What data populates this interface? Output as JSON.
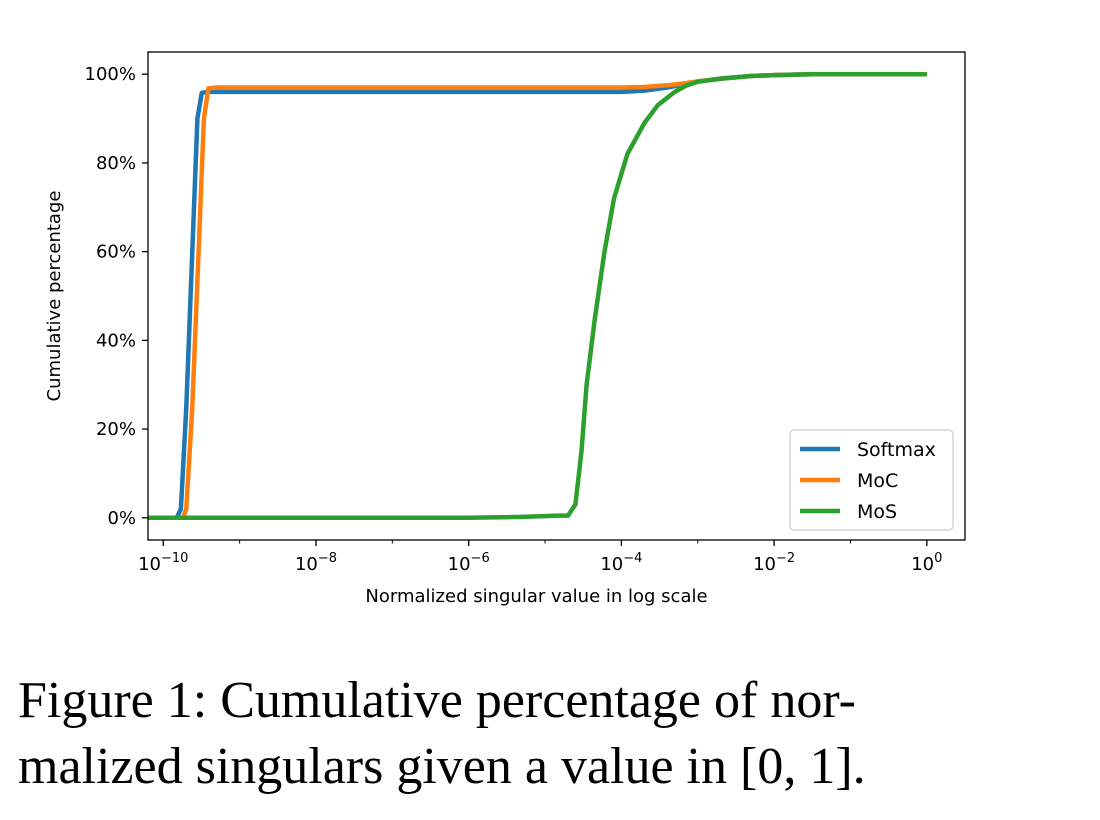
{
  "chart_data": {
    "type": "line",
    "title": "",
    "xlabel": "Normalized singular value in log scale",
    "ylabel": "Cumulative percentage",
    "x_scale": "log",
    "xlim": [
      1e-10,
      1
    ],
    "ylim": [
      0,
      100
    ],
    "x_ticks": [
      {
        "base": "10",
        "exp": "−10"
      },
      {
        "base": "10",
        "exp": "−8"
      },
      {
        "base": "10",
        "exp": "−6"
      },
      {
        "base": "10",
        "exp": "−4"
      },
      {
        "base": "10",
        "exp": "−2"
      },
      {
        "base": "10",
        "exp": "0"
      }
    ],
    "y_ticks": [
      "0%",
      "20%",
      "40%",
      "60%",
      "80%",
      "100%"
    ],
    "grid": false,
    "legend": "bottom-right",
    "series": [
      {
        "name": "Softmax",
        "color": "#1f77b4",
        "points": [
          [
            6.3e-11,
            0
          ],
          [
            1.5e-10,
            0
          ],
          [
            1.7e-10,
            2
          ],
          [
            2e-10,
            25
          ],
          [
            2.4e-10,
            60
          ],
          [
            2.8e-10,
            90
          ],
          [
            3.2e-10,
            95.8
          ],
          [
            4e-10,
            96
          ],
          [
            1e-09,
            96
          ],
          [
            1e-08,
            96
          ],
          [
            1e-07,
            96
          ],
          [
            1e-06,
            96
          ],
          [
            1e-05,
            96
          ],
          [
            5e-05,
            96
          ],
          [
            0.0001,
            96
          ],
          [
            0.0002,
            96.3
          ],
          [
            0.0004,
            97
          ],
          [
            0.0007,
            97.8
          ],
          [
            0.001,
            98.3
          ],
          [
            0.002,
            99
          ],
          [
            0.005,
            99.6
          ],
          [
            0.01,
            99.8
          ],
          [
            0.03,
            100
          ],
          [
            1,
            100
          ]
        ]
      },
      {
        "name": "MoC",
        "color": "#ff7f0e",
        "points": [
          [
            6.3e-11,
            0
          ],
          [
            1.8e-10,
            0
          ],
          [
            2e-10,
            2
          ],
          [
            2.4e-10,
            25
          ],
          [
            2.9e-10,
            60
          ],
          [
            3.4e-10,
            90
          ],
          [
            3.9e-10,
            96.8
          ],
          [
            5e-10,
            97
          ],
          [
            1e-09,
            97
          ],
          [
            1e-08,
            97
          ],
          [
            1e-07,
            97
          ],
          [
            1e-06,
            97
          ],
          [
            1e-05,
            97
          ],
          [
            0.0001,
            97
          ],
          [
            0.0002,
            97.1
          ],
          [
            0.0004,
            97.5
          ],
          [
            0.0007,
            98
          ],
          [
            0.001,
            98.4
          ],
          [
            0.002,
            99
          ],
          [
            0.005,
            99.6
          ],
          [
            0.01,
            99.8
          ],
          [
            0.03,
            100
          ],
          [
            1,
            100
          ]
        ]
      },
      {
        "name": "MoS",
        "color": "#2ca02c",
        "points": [
          [
            6.3e-11,
            0
          ],
          [
            1e-09,
            0
          ],
          [
            1e-07,
            0
          ],
          [
            1e-06,
            0
          ],
          [
            5e-06,
            0.2
          ],
          [
            1.5e-05,
            0.5
          ],
          [
            2e-05,
            0.5
          ],
          [
            2.5e-05,
            3
          ],
          [
            3e-05,
            15
          ],
          [
            3.5e-05,
            30
          ],
          [
            4.5e-05,
            45
          ],
          [
            6e-05,
            60
          ],
          [
            8e-05,
            72
          ],
          [
            0.00012,
            82
          ],
          [
            0.0002,
            89
          ],
          [
            0.0003,
            93
          ],
          [
            0.0005,
            96
          ],
          [
            0.0007,
            97.4
          ],
          [
            0.001,
            98.3
          ],
          [
            0.002,
            99
          ],
          [
            0.005,
            99.6
          ],
          [
            0.01,
            99.8
          ],
          [
            0.03,
            100
          ],
          [
            1,
            100
          ]
        ]
      }
    ]
  },
  "caption": {
    "line1": "Figure 1:  Cumulative percentage of nor-",
    "line2": "malized singulars given a value in [0, 1]."
  }
}
